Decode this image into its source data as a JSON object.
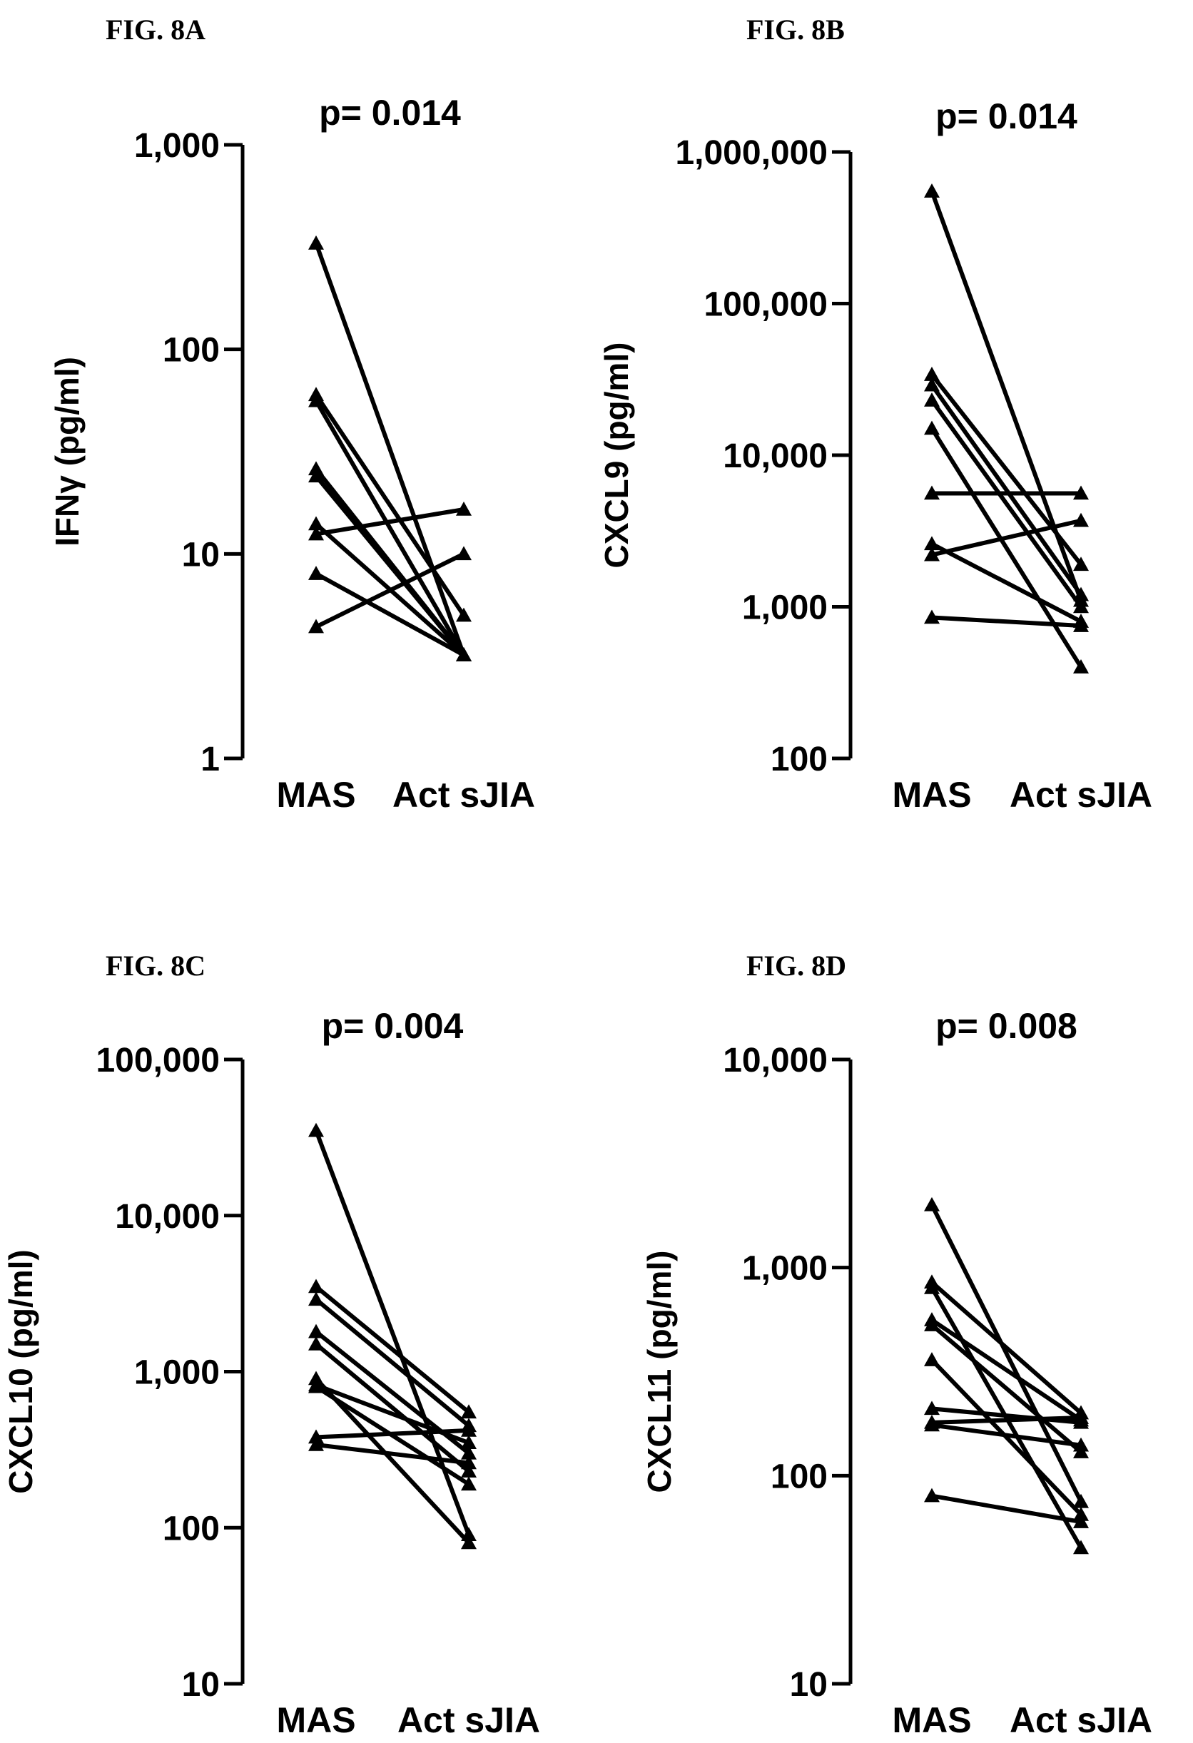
{
  "chart_data": [
    {
      "type": "line",
      "figure_label": "FIG.  8A",
      "title": "p= 0.014",
      "ylabel": "IFNγ (pg/ml)",
      "categories": [
        "MAS",
        "Act sJIA"
      ],
      "yscale": "log",
      "ylim": [
        1,
        1000
      ],
      "yticks": [
        1,
        10,
        100,
        1000
      ],
      "ytick_labels": [
        "1",
        "10",
        "100",
        "1,000"
      ],
      "pairs": [
        [
          330,
          3.2
        ],
        [
          60,
          5
        ],
        [
          56,
          3.2
        ],
        [
          26,
          3.2
        ],
        [
          24,
          3.2
        ],
        [
          14,
          3.2
        ],
        [
          12.5,
          16.5
        ],
        [
          8,
          3.2
        ],
        [
          4.4,
          10
        ]
      ],
      "color": "#000000"
    },
    {
      "type": "line",
      "figure_label": "FIG. 8B",
      "title": "p= 0.014",
      "ylabel": "CXCL9 (pg/ml)",
      "categories": [
        "MAS",
        "Act sJIA"
      ],
      "yscale": "log",
      "ylim": [
        100,
        1000000
      ],
      "yticks": [
        100,
        1000,
        10000,
        100000,
        1000000
      ],
      "ytick_labels": [
        "100",
        "1,000",
        "10,000",
        "100,000",
        "1,000,000"
      ],
      "pairs": [
        [
          550000,
          1100
        ],
        [
          34000,
          1900
        ],
        [
          29000,
          1200
        ],
        [
          23000,
          1000
        ],
        [
          15000,
          400
        ],
        [
          5600,
          5600
        ],
        [
          2600,
          800
        ],
        [
          2200,
          3700
        ],
        [
          850,
          750
        ]
      ],
      "color": "#000000"
    },
    {
      "type": "line",
      "figure_label": "FIG. 8C",
      "title": "p= 0.004",
      "ylabel": "CXCL10 (pg/ml)",
      "categories": [
        "MAS",
        "Act sJIA"
      ],
      "yscale": "log",
      "ylim": [
        10,
        100000
      ],
      "yticks": [
        10,
        100,
        1000,
        10000,
        100000
      ],
      "ytick_labels": [
        "10",
        "100",
        "1,000",
        "10,000",
        "100,000"
      ],
      "pairs": [
        [
          35000,
          90
        ],
        [
          3500,
          550
        ],
        [
          2900,
          450
        ],
        [
          1800,
          300
        ],
        [
          1500,
          230
        ],
        [
          900,
          80
        ],
        [
          820,
          350
        ],
        [
          800,
          190
        ],
        [
          380,
          420
        ],
        [
          340,
          260
        ]
      ],
      "color": "#000000"
    },
    {
      "type": "line",
      "figure_label": "FIG. 8D",
      "title": "p= 0.008",
      "ylabel": "CXCL11 (pg/ml)",
      "categories": [
        "MAS",
        "Act sJIA"
      ],
      "yscale": "log",
      "ylim": [
        10,
        10000
      ],
      "yticks": [
        10,
        100,
        1000,
        10000
      ],
      "ytick_labels": [
        "10",
        "100",
        "1,000",
        "10,000"
      ],
      "pairs": [
        [
          2000,
          75
        ],
        [
          850,
          200
        ],
        [
          800,
          45
        ],
        [
          560,
          185
        ],
        [
          530,
          130
        ],
        [
          360,
          65
        ],
        [
          210,
          180
        ],
        [
          180,
          190
        ],
        [
          175,
          140
        ],
        [
          80,
          60
        ]
      ],
      "color": "#000000"
    }
  ]
}
